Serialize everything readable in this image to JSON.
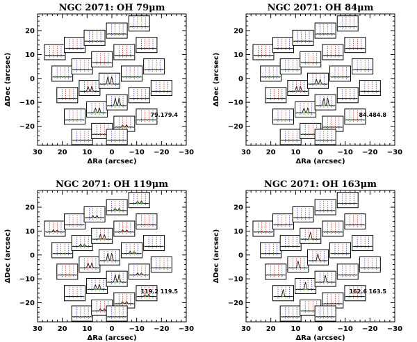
{
  "colors": {
    "frame": "#000000",
    "baseline": "#1a8a1a",
    "line_marker": "#e0302a",
    "vel_marker": "#4b3fd0",
    "spectrum": "#000000"
  },
  "chart_data": [
    {
      "type": "scatter",
      "title": "NGC 2071: OH 79μm",
      "xlabel": "ΔRa (arcsec)",
      "ylabel": "ΔDec (arcsec)",
      "xlim": [
        30,
        -30
      ],
      "ylim": [
        -28,
        27
      ],
      "xticks": [
        "30",
        "20",
        "10",
        "0",
        "−10",
        "−20",
        "−30"
      ],
      "yticks": [
        "−20",
        "−10",
        "0",
        "10",
        "20"
      ],
      "annotation": "79.179.4",
      "spaxels": [
        {
          "x": 23,
          "y": 11,
          "s": 0
        },
        {
          "x": 15,
          "y": 14,
          "s": 0
        },
        {
          "x": 7,
          "y": 17,
          "s": 0
        },
        {
          "x": -2,
          "y": 20,
          "s": 0
        },
        {
          "x": -11,
          "y": 23,
          "s": 0
        },
        {
          "x": 20,
          "y": 2,
          "s": 0
        },
        {
          "x": 12,
          "y": 5,
          "s": 0
        },
        {
          "x": 4,
          "y": 8,
          "s": 0
        },
        {
          "x": -5,
          "y": 11,
          "s": 0
        },
        {
          "x": -14,
          "y": 14,
          "s": 0
        },
        {
          "x": 18,
          "y": -7,
          "s": 0
        },
        {
          "x": 9,
          "y": -4,
          "s": 2
        },
        {
          "x": 1,
          "y": -1,
          "s": 3
        },
        {
          "x": -8,
          "y": 2,
          "s": 0
        },
        {
          "x": -17,
          "y": 5,
          "s": 0
        },
        {
          "x": 15,
          "y": -16,
          "s": 0
        },
        {
          "x": 6,
          "y": -13,
          "s": 2
        },
        {
          "x": -2,
          "y": -10,
          "s": 3
        },
        {
          "x": -11,
          "y": -7,
          "s": 0
        },
        {
          "x": -20,
          "y": -4,
          "s": 0
        },
        {
          "x": 12,
          "y": -25,
          "s": 0
        },
        {
          "x": 4,
          "y": -22,
          "s": 0
        },
        {
          "x": -5,
          "y": -19,
          "s": 1
        },
        {
          "x": -14,
          "y": -16,
          "s": 0
        },
        {
          "x": -2,
          "y": -28,
          "s": 0
        }
      ]
    },
    {
      "type": "scatter",
      "title": "NGC 2071: OH 84μm",
      "xlabel": "ΔRa (arcsec)",
      "ylabel": "ΔDec (arcsec)",
      "xlim": [
        30,
        -30
      ],
      "ylim": [
        -28,
        27
      ],
      "xticks": [
        "30",
        "20",
        "10",
        "0",
        "−10",
        "−20",
        "−30"
      ],
      "yticks": [
        "−20",
        "−10",
        "0",
        "10",
        "20"
      ],
      "annotation": "84.484.8",
      "spaxels": [
        {
          "x": 23,
          "y": 11,
          "s": 0
        },
        {
          "x": 15,
          "y": 14,
          "s": 0
        },
        {
          "x": 7,
          "y": 17,
          "s": 0
        },
        {
          "x": -2,
          "y": 20,
          "s": 0
        },
        {
          "x": -11,
          "y": 23,
          "s": 0
        },
        {
          "x": 20,
          "y": 2,
          "s": 0
        },
        {
          "x": 12,
          "y": 5,
          "s": 0
        },
        {
          "x": 4,
          "y": 8,
          "s": 0
        },
        {
          "x": -5,
          "y": 11,
          "s": 0
        },
        {
          "x": -14,
          "y": 14,
          "s": 0
        },
        {
          "x": 18,
          "y": -7,
          "s": 0
        },
        {
          "x": 9,
          "y": -4,
          "s": 2
        },
        {
          "x": 1,
          "y": -1,
          "s": 2
        },
        {
          "x": -8,
          "y": 2,
          "s": 0
        },
        {
          "x": -17,
          "y": 5,
          "s": 0
        },
        {
          "x": 15,
          "y": -16,
          "s": 0
        },
        {
          "x": 6,
          "y": -13,
          "s": 2
        },
        {
          "x": -2,
          "y": -10,
          "s": 3
        },
        {
          "x": -11,
          "y": -7,
          "s": 0
        },
        {
          "x": -20,
          "y": -4,
          "s": 0
        },
        {
          "x": 12,
          "y": -25,
          "s": 0
        },
        {
          "x": 4,
          "y": -22,
          "s": 0
        },
        {
          "x": -5,
          "y": -19,
          "s": 0
        },
        {
          "x": -14,
          "y": -16,
          "s": 0
        },
        {
          "x": -2,
          "y": -28,
          "s": 0
        }
      ]
    },
    {
      "type": "scatter",
      "title": "NGC 2071: OH 119μm",
      "xlabel": "ΔRa (arcsec)",
      "ylabel": "ΔDec (arcsec)",
      "xlim": [
        30,
        -30
      ],
      "ylim": [
        -28,
        27
      ],
      "xticks": [
        "30",
        "20",
        "10",
        "0",
        "−10",
        "−20",
        "−30"
      ],
      "yticks": [
        "−20",
        "−10",
        "0",
        "10",
        "20"
      ],
      "annotation": "119.2    119.5",
      "spaxels": [
        {
          "x": 23,
          "y": 11,
          "s": 1
        },
        {
          "x": 15,
          "y": 14,
          "s": 0
        },
        {
          "x": 7,
          "y": 17,
          "s": 1
        },
        {
          "x": -2,
          "y": 20,
          "s": 1
        },
        {
          "x": -11,
          "y": 23,
          "s": 1
        },
        {
          "x": 20,
          "y": 2,
          "s": 0
        },
        {
          "x": 12,
          "y": 5,
          "s": 1
        },
        {
          "x": 4,
          "y": 8,
          "s": 2
        },
        {
          "x": -5,
          "y": 11,
          "s": 1
        },
        {
          "x": -14,
          "y": 14,
          "s": 0
        },
        {
          "x": 18,
          "y": -7,
          "s": 0
        },
        {
          "x": 9,
          "y": -4,
          "s": 2
        },
        {
          "x": 1,
          "y": -1,
          "s": 3
        },
        {
          "x": -8,
          "y": 2,
          "s": 1
        },
        {
          "x": -17,
          "y": 5,
          "s": 0
        },
        {
          "x": 15,
          "y": -16,
          "s": 0
        },
        {
          "x": 6,
          "y": -13,
          "s": 2
        },
        {
          "x": -2,
          "y": -10,
          "s": 3
        },
        {
          "x": -11,
          "y": -7,
          "s": 1
        },
        {
          "x": -20,
          "y": -4,
          "s": 0
        },
        {
          "x": 12,
          "y": -25,
          "s": 0
        },
        {
          "x": 4,
          "y": -22,
          "s": 1
        },
        {
          "x": -5,
          "y": -19,
          "s": 1
        },
        {
          "x": -14,
          "y": -16,
          "s": 1
        },
        {
          "x": -2,
          "y": -28,
          "s": 0
        }
      ]
    },
    {
      "type": "scatter",
      "title": "NGC 2071: OH 163μm",
      "xlabel": "ΔRa (arcsec)",
      "ylabel": "ΔDec (arcsec)",
      "xlim": [
        30,
        -30
      ],
      "ylim": [
        -28,
        27
      ],
      "xticks": [
        "30",
        "20",
        "10",
        "0",
        "−10",
        "−20",
        "−30"
      ],
      "yticks": [
        "−20",
        "−10",
        "0",
        "10",
        "20"
      ],
      "annotation": "162.6  163.5",
      "spaxels": [
        {
          "x": 23,
          "y": 11,
          "s": 0
        },
        {
          "x": 15,
          "y": 14,
          "s": 0
        },
        {
          "x": 7,
          "y": 17,
          "s": 0
        },
        {
          "x": -2,
          "y": 20,
          "s": 0
        },
        {
          "x": -11,
          "y": 23,
          "s": 0
        },
        {
          "x": 20,
          "y": 2,
          "s": 0
        },
        {
          "x": 12,
          "y": 5,
          "s": 0
        },
        {
          "x": 4,
          "y": 8,
          "s": 4
        },
        {
          "x": -5,
          "y": 11,
          "s": 0
        },
        {
          "x": -14,
          "y": 14,
          "s": 0
        },
        {
          "x": 18,
          "y": -7,
          "s": 0
        },
        {
          "x": 9,
          "y": -4,
          "s": 4
        },
        {
          "x": 1,
          "y": -1,
          "s": 4
        },
        {
          "x": -8,
          "y": 2,
          "s": 0
        },
        {
          "x": -17,
          "y": 5,
          "s": 0
        },
        {
          "x": 15,
          "y": -16,
          "s": 4
        },
        {
          "x": 6,
          "y": -13,
          "s": 4
        },
        {
          "x": -2,
          "y": -10,
          "s": 4
        },
        {
          "x": -11,
          "y": -7,
          "s": 0
        },
        {
          "x": -20,
          "y": -4,
          "s": 0
        },
        {
          "x": 12,
          "y": -25,
          "s": 0
        },
        {
          "x": 4,
          "y": -22,
          "s": 0
        },
        {
          "x": -5,
          "y": -19,
          "s": 0
        },
        {
          "x": -14,
          "y": -16,
          "s": 0
        },
        {
          "x": -2,
          "y": -28,
          "s": 0
        }
      ]
    }
  ]
}
